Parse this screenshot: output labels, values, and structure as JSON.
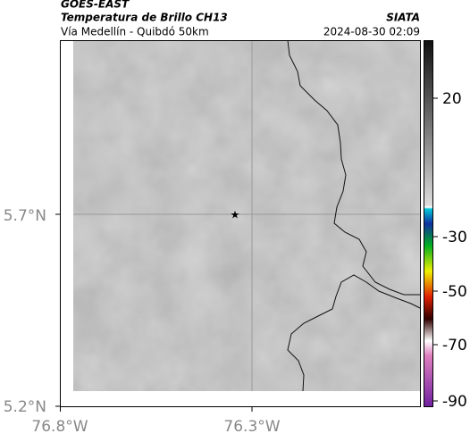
{
  "header": {
    "satellite": "GOES-EAST",
    "product": "Temperatura de Brillo CH13",
    "route": "Vía Medellín - Quibdó 50km",
    "source": "SIATA",
    "datetime": "2024-08-30 02:09"
  },
  "axes": {
    "x_labels": [
      "76.8°W",
      "76.3°W"
    ],
    "y_labels": [
      "5.7°N",
      "5.2°N"
    ]
  },
  "colorbar": {
    "labels": [
      "20",
      "-30",
      "-50",
      "-70",
      "-90"
    ]
  }
}
